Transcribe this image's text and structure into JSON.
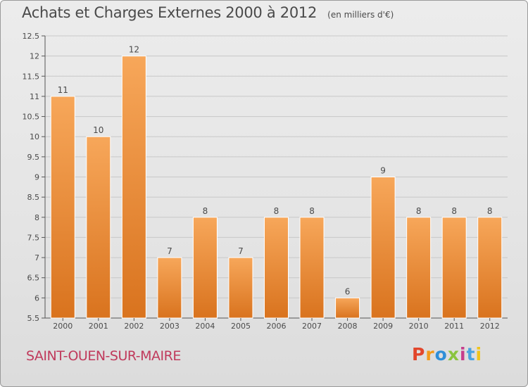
{
  "header": {
    "title": "Achats et Charges Externes 2000 à 2012",
    "unit": "(en milliers d'€)"
  },
  "footer": {
    "town": "SAINT-OUEN-SUR-MAIRE",
    "logo_text": "Proxiti",
    "logo_colors": [
      "#e2462b",
      "#f29b1b",
      "#2f8fd8",
      "#8ac43f",
      "#c63d8c",
      "#4aa3df",
      "#f0c419"
    ]
  },
  "colors": {
    "bar_top": "#f7a75a",
    "bar_bottom": "#d9731e",
    "grid": "#c8c8c8",
    "axis": "#555555",
    "text": "#4a4a4a"
  },
  "chart_data": {
    "type": "bar",
    "categories": [
      "2000",
      "2001",
      "2002",
      "2003",
      "2004",
      "2005",
      "2006",
      "2007",
      "2008",
      "2009",
      "2010",
      "2011",
      "2012"
    ],
    "values": [
      11,
      10,
      12,
      7,
      8,
      7,
      8,
      8,
      6,
      9,
      8,
      8,
      8
    ],
    "data_labels": [
      "11",
      "10",
      "12",
      "7",
      "8",
      "7",
      "8",
      "8",
      "6",
      "9",
      "8",
      "8",
      "8"
    ],
    "yticks": [
      "5.5",
      "6",
      "6.5",
      "7",
      "7.5",
      "8",
      "8.5",
      "9",
      "9.5",
      "10",
      "10.5",
      "11",
      "11.5",
      "12",
      "12.5"
    ],
    "ylim": [
      5.5,
      12.5
    ],
    "title": "Achats et Charges Externes 2000 à 2012",
    "xlabel": "",
    "ylabel": "",
    "grid": true,
    "legend": "none"
  }
}
